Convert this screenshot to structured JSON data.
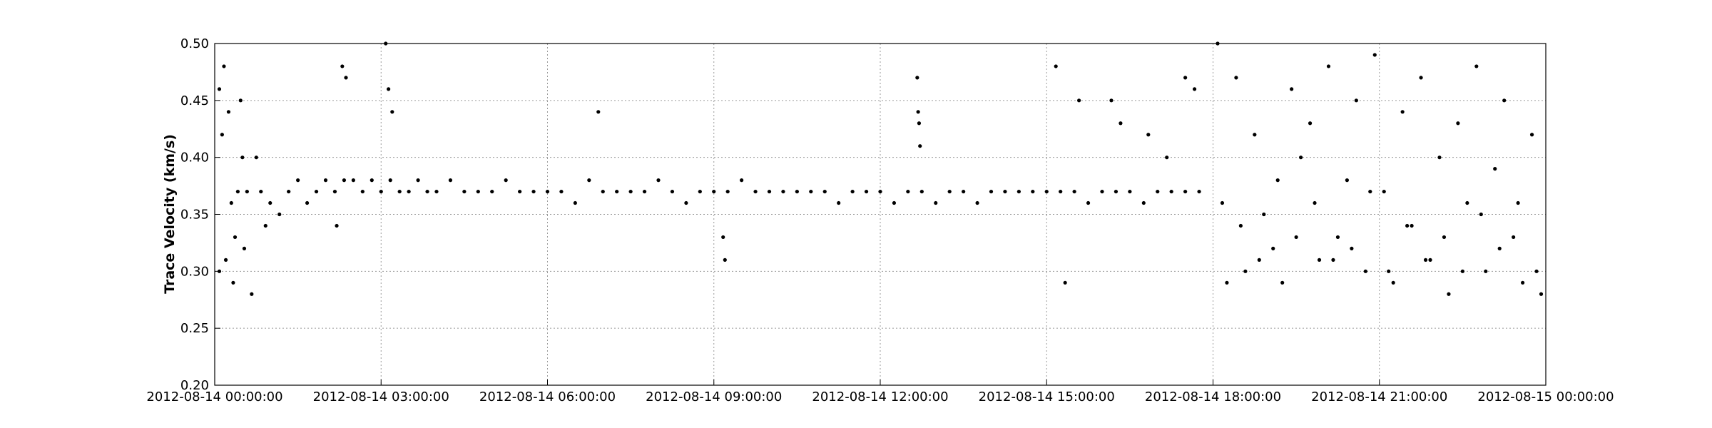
{
  "chart_data": {
    "type": "scatter",
    "title": "",
    "xlabel": "",
    "ylabel": "Trace Velocity (km/s)",
    "xlim": [
      "2012-08-14 00:00:00",
      "2012-08-15 00:00:00"
    ],
    "ylim": [
      0.2,
      0.5
    ],
    "x_ticks": [
      "2012-08-14 00:00:00",
      "2012-08-14 03:00:00",
      "2012-08-14 06:00:00",
      "2012-08-14 09:00:00",
      "2012-08-14 12:00:00",
      "2012-08-14 15:00:00",
      "2012-08-14 18:00:00",
      "2012-08-14 21:00:00",
      "2012-08-15 00:00:00"
    ],
    "y_ticks": [
      "0.20",
      "0.25",
      "0.30",
      "0.35",
      "0.40",
      "0.45",
      "0.50"
    ],
    "grid": true,
    "marker_color": "#000000",
    "series": [
      {
        "x": [
          "2012-08-14 00:05:00",
          "2012-08-14 00:10:00",
          "2012-08-14 00:15:00",
          "2012-08-14 00:20:00",
          "2012-08-14 00:25:00",
          "2012-08-14 00:30:00",
          "2012-08-14 00:35:00",
          "2012-08-14 00:40:00",
          "2012-08-14 00:45:00",
          "2012-08-14 00:50:00",
          "2012-08-14 00:55:00",
          "2012-08-14 01:00:00",
          "2012-08-14 01:10:00",
          "2012-08-14 01:20:00",
          "2012-08-14 01:30:00",
          "2012-08-14 01:40:00",
          "2012-08-14 01:50:00",
          "2012-08-14 02:00:00",
          "2012-08-14 02:10:00",
          "2012-08-14 02:20:00",
          "2012-08-14 02:30:00",
          "2012-08-14 02:40:00",
          "2012-08-14 02:50:00",
          "2012-08-14 03:00:00",
          "2012-08-14 03:10:00",
          "2012-08-14 03:20:00",
          "2012-08-14 03:30:00",
          "2012-08-14 03:40:00",
          "2012-08-14 03:50:00",
          "2012-08-14 04:00:00",
          "2012-08-14 04:15:00",
          "2012-08-14 04:30:00",
          "2012-08-14 04:45:00",
          "2012-08-14 05:00:00",
          "2012-08-14 05:15:00",
          "2012-08-14 05:30:00",
          "2012-08-14 05:45:00",
          "2012-08-14 06:00:00",
          "2012-08-14 06:15:00",
          "2012-08-14 06:30:00",
          "2012-08-14 06:45:00",
          "2012-08-14 07:00:00",
          "2012-08-14 07:15:00",
          "2012-08-14 07:30:00",
          "2012-08-14 07:45:00",
          "2012-08-14 08:00:00",
          "2012-08-14 08:15:00",
          "2012-08-14 08:30:00",
          "2012-08-14 08:45:00",
          "2012-08-14 09:00:00",
          "2012-08-14 09:15:00",
          "2012-08-14 09:30:00",
          "2012-08-14 09:45:00",
          "2012-08-14 10:00:00",
          "2012-08-14 10:15:00",
          "2012-08-14 10:30:00",
          "2012-08-14 10:45:00",
          "2012-08-14 11:00:00",
          "2012-08-14 11:15:00",
          "2012-08-14 11:30:00",
          "2012-08-14 11:45:00",
          "2012-08-14 12:00:00",
          "2012-08-14 12:15:00",
          "2012-08-14 12:30:00",
          "2012-08-14 12:45:00",
          "2012-08-14 13:00:00",
          "2012-08-14 13:15:00",
          "2012-08-14 13:30:00",
          "2012-08-14 13:45:00",
          "2012-08-14 14:00:00",
          "2012-08-14 14:15:00",
          "2012-08-14 14:30:00",
          "2012-08-14 14:45:00",
          "2012-08-14 15:00:00",
          "2012-08-14 15:15:00",
          "2012-08-14 15:30:00",
          "2012-08-14 15:45:00",
          "2012-08-14 16:00:00",
          "2012-08-14 16:15:00",
          "2012-08-14 16:30:00",
          "2012-08-14 16:45:00",
          "2012-08-14 17:00:00",
          "2012-08-14 17:15:00",
          "2012-08-14 17:30:00",
          "2012-08-14 17:45:00",
          "2012-08-14 00:05:00",
          "2012-08-14 00:08:00",
          "2012-08-14 00:12:00",
          "2012-08-14 00:18:00",
          "2012-08-14 00:22:00",
          "2012-08-14 00:28:00",
          "2012-08-14 00:32:00",
          "2012-08-14 02:12:00",
          "2012-08-14 02:18:00",
          "2012-08-14 02:22:00",
          "2012-08-14 03:05:00",
          "2012-08-14 03:08:00",
          "2012-08-14 03:12:00",
          "2012-08-14 06:55:00",
          "2012-08-14 09:10:00",
          "2012-08-14 09:12:00",
          "2012-08-14 12:40:00",
          "2012-08-14 12:41:00",
          "2012-08-14 12:42:00",
          "2012-08-14 12:43:00",
          "2012-08-14 15:10:00",
          "2012-08-14 15:35:00",
          "2012-08-14 15:20:00",
          "2012-08-14 16:10:00",
          "2012-08-14 16:20:00",
          "2012-08-14 16:50:00",
          "2012-08-14 17:10:00",
          "2012-08-14 17:30:00",
          "2012-08-14 17:40:00",
          "2012-08-14 18:05:00",
          "2012-08-14 18:15:00",
          "2012-08-14 18:25:00",
          "2012-08-14 18:35:00",
          "2012-08-14 18:45:00",
          "2012-08-14 18:55:00",
          "2012-08-14 19:05:00",
          "2012-08-14 19:15:00",
          "2012-08-14 19:25:00",
          "2012-08-14 19:35:00",
          "2012-08-14 19:45:00",
          "2012-08-14 19:55:00",
          "2012-08-14 20:05:00",
          "2012-08-14 20:15:00",
          "2012-08-14 20:25:00",
          "2012-08-14 20:35:00",
          "2012-08-14 20:45:00",
          "2012-08-14 20:55:00",
          "2012-08-14 21:05:00",
          "2012-08-14 21:15:00",
          "2012-08-14 21:25:00",
          "2012-08-14 21:35:00",
          "2012-08-14 21:45:00",
          "2012-08-14 21:55:00",
          "2012-08-14 22:05:00",
          "2012-08-14 22:15:00",
          "2012-08-14 22:25:00",
          "2012-08-14 22:35:00",
          "2012-08-14 22:45:00",
          "2012-08-14 22:55:00",
          "2012-08-14 23:05:00",
          "2012-08-14 23:15:00",
          "2012-08-14 23:25:00",
          "2012-08-14 23:35:00",
          "2012-08-14 23:45:00",
          "2012-08-14 23:55:00",
          "2012-08-14 18:10:00",
          "2012-08-14 18:30:00",
          "2012-08-14 18:50:00",
          "2012-08-14 19:10:00",
          "2012-08-14 19:30:00",
          "2012-08-14 19:50:00",
          "2012-08-14 20:10:00",
          "2012-08-14 20:30:00",
          "2012-08-14 20:50:00",
          "2012-08-14 21:10:00",
          "2012-08-14 21:30:00",
          "2012-08-14 21:50:00",
          "2012-08-14 22:10:00",
          "2012-08-14 22:30:00",
          "2012-08-14 22:50:00",
          "2012-08-14 23:10:00",
          "2012-08-14 23:30:00",
          "2012-08-14 23:50:00"
        ],
        "y": [
          0.3,
          0.48,
          0.44,
          0.29,
          0.37,
          0.4,
          0.37,
          0.28,
          0.4,
          0.37,
          0.34,
          0.36,
          0.35,
          0.37,
          0.38,
          0.36,
          0.37,
          0.38,
          0.37,
          0.38,
          0.38,
          0.37,
          0.38,
          0.37,
          0.38,
          0.37,
          0.37,
          0.38,
          0.37,
          0.37,
          0.38,
          0.37,
          0.37,
          0.37,
          0.38,
          0.37,
          0.37,
          0.37,
          0.37,
          0.36,
          0.38,
          0.37,
          0.37,
          0.37,
          0.37,
          0.38,
          0.37,
          0.36,
          0.37,
          0.37,
          0.37,
          0.38,
          0.37,
          0.37,
          0.37,
          0.37,
          0.37,
          0.37,
          0.36,
          0.37,
          0.37,
          0.37,
          0.36,
          0.37,
          0.37,
          0.36,
          0.37,
          0.37,
          0.36,
          0.37,
          0.37,
          0.37,
          0.37,
          0.37,
          0.37,
          0.37,
          0.36,
          0.37,
          0.37,
          0.37,
          0.36,
          0.37,
          0.37,
          0.37,
          0.37,
          0.46,
          0.42,
          0.31,
          0.36,
          0.33,
          0.45,
          0.32,
          0.34,
          0.48,
          0.47,
          0.5,
          0.46,
          0.44,
          0.44,
          0.33,
          0.31,
          0.47,
          0.44,
          0.43,
          0.41,
          0.48,
          0.45,
          0.29,
          0.45,
          0.43,
          0.42,
          0.4,
          0.47,
          0.46,
          0.5,
          0.29,
          0.47,
          0.3,
          0.42,
          0.35,
          0.32,
          0.29,
          0.46,
          0.4,
          0.43,
          0.31,
          0.48,
          0.33,
          0.38,
          0.45,
          0.3,
          0.49,
          0.37,
          0.29,
          0.44,
          0.34,
          0.47,
          0.31,
          0.4,
          0.28,
          0.43,
          0.36,
          0.48,
          0.3,
          0.39,
          0.45,
          0.33,
          0.29,
          0.42,
          0.28,
          0.36,
          0.34,
          0.31,
          0.38,
          0.33,
          0.36,
          0.31,
          0.32,
          0.37,
          0.3,
          0.34,
          0.31,
          0.33,
          0.3,
          0.35,
          0.32,
          0.36,
          0.3
        ]
      }
    ]
  }
}
